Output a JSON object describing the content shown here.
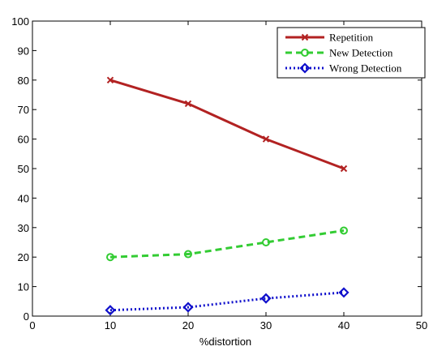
{
  "chart_data": {
    "type": "line",
    "title": "",
    "xlabel": "%distortion",
    "ylabel": "",
    "xlim": [
      0,
      50
    ],
    "ylim": [
      0,
      100
    ],
    "xticks": [
      0,
      10,
      20,
      30,
      40,
      50
    ],
    "yticks": [
      0,
      10,
      20,
      30,
      40,
      50,
      60,
      70,
      80,
      90,
      100
    ],
    "grid": false,
    "legend_position": "top-right",
    "x": [
      10,
      20,
      30,
      40
    ],
    "series": [
      {
        "name": "Repetition",
        "values": [
          80,
          72,
          60,
          50
        ],
        "color": "#b22222",
        "line_style": "solid",
        "marker": "x"
      },
      {
        "name": "New Detection",
        "values": [
          20,
          21,
          25,
          29
        ],
        "color": "#33cc33",
        "line_style": "dashed",
        "marker": "circle"
      },
      {
        "name": "Wrong Detection",
        "values": [
          2,
          3,
          6,
          8
        ],
        "color": "#1010cc",
        "line_style": "dotted",
        "marker": "diamond"
      }
    ]
  }
}
